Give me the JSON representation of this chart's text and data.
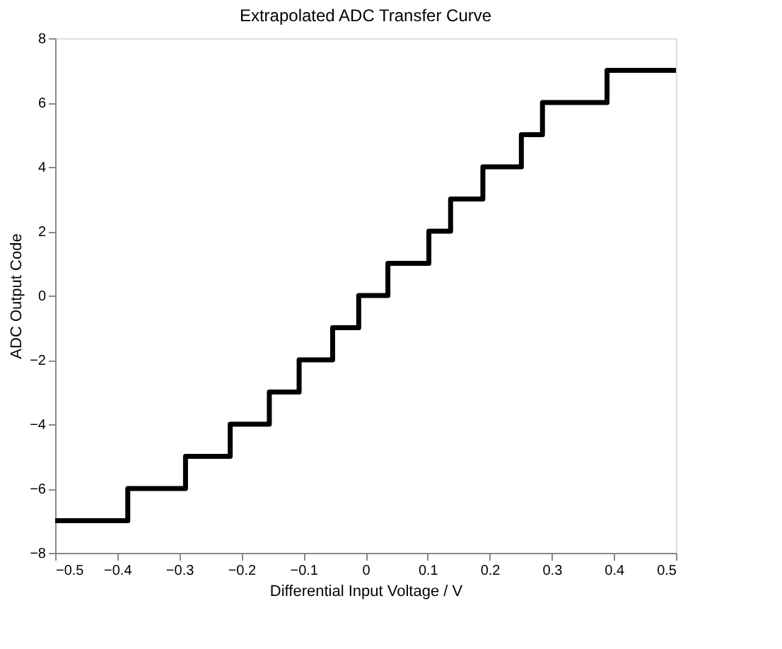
{
  "chart_data": {
    "type": "step",
    "title": "Extrapolated ADC Transfer Curve",
    "xlabel": "Differential Input Voltage / V",
    "ylabel": "ADC Output Code",
    "series": [
      {
        "color": "#000000",
        "x": [
          -0.5,
          -0.383,
          -0.29,
          -0.218,
          -0.155,
          -0.107,
          -0.053,
          -0.011,
          0.036,
          0.102,
          0.137,
          0.189,
          0.251,
          0.285,
          0.389,
          0.5
        ],
        "values": [
          -7,
          -6,
          -5,
          -4,
          -3,
          -2,
          -1,
          0,
          1,
          2,
          3,
          4,
          5,
          6,
          7,
          7
        ]
      }
    ],
    "xlim": [
      -0.5,
      0.5
    ],
    "xticks": [
      -0.5,
      -0.4,
      -0.3,
      -0.2,
      -0.1,
      0,
      0.1,
      0.2,
      0.3,
      0.4,
      0.5
    ],
    "ylim": [
      -8,
      8
    ],
    "yticks": [
      -8,
      -6,
      -4,
      -2,
      0,
      2,
      4,
      6,
      8
    ],
    "grid": false,
    "line_style": "solid",
    "marker": "none"
  }
}
